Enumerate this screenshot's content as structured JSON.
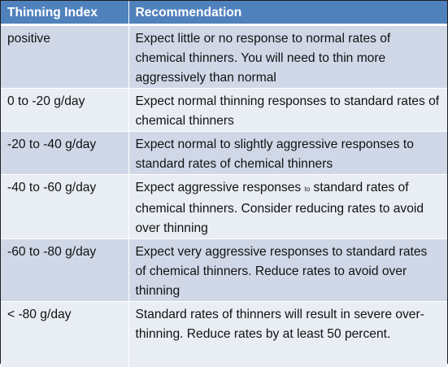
{
  "table": {
    "headers": [
      "Thinning Index",
      "Recommendation"
    ],
    "rows": [
      {
        "index": "positive",
        "recommendation": "Expect little or no response to normal rates of chemical thinners.  You will need to thin more aggressively than normal"
      },
      {
        "index": "0 to -20 g/day",
        "recommendation": "Expect normal thinning responses to standard rates of chemical thinners"
      },
      {
        "index": "-20 to -40 g/day",
        "recommendation": "Expect normal to slightly aggressive responses to standard rates of chemical thinners"
      },
      {
        "index": "-40 to -60 g/day",
        "recommendation_pre": "Expect aggressive responses ",
        "recommendation_small": "to",
        "recommendation_post": " standard rates of chemical thinners.  Consider reducing rates to avoid over thinning"
      },
      {
        "index": "-60 to -80 g/day",
        "recommendation": "Expect very aggressive responses to standard rates of chemical thinners.  Reduce rates to avoid over thinning"
      },
      {
        "index": "< -80 g/day",
        "recommendation": "Standard rates of thinners will result in severe over-thinning.  Reduce rates by at least 50 percent."
      }
    ]
  },
  "colors": {
    "header_bg": "#4f81bd",
    "row_odd_bg": "#d0d8e8",
    "row_even_bg": "#e9edf4"
  }
}
